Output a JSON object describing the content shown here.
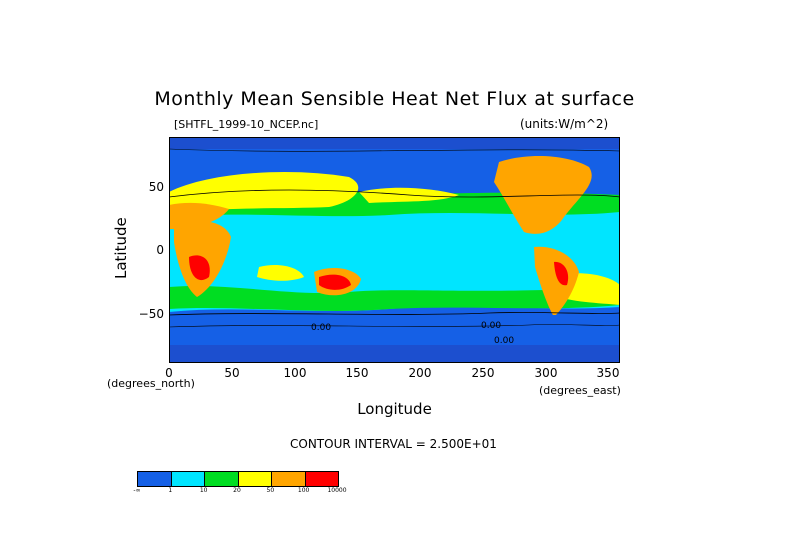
{
  "title": "Monthly Mean Sensible Heat Net Flux at surface",
  "file_label": "[SHTFL_1999-10_NCEP.nc]",
  "units_label": "(units:W/m^2)",
  "y_axis": {
    "label": "Latitude",
    "ticks": [
      "50",
      "0",
      "−50"
    ],
    "unit_note": "(degrees_north)"
  },
  "x_axis": {
    "label": "Longitude",
    "ticks": [
      "0",
      "50",
      "100",
      "150",
      "200",
      "250",
      "300",
      "350"
    ],
    "unit_note": "(degrees_east)"
  },
  "contour_interval": "CONTOUR INTERVAL = 2.500E+01",
  "contour_labels": [
    "0.00",
    "0.00",
    "0.00"
  ],
  "legend": {
    "colors": [
      "#1560e6",
      "#00e5ff",
      "#00dd22",
      "#ffff00",
      "#ffa500",
      "#ff0000"
    ],
    "labels": [
      "-∞",
      "1",
      "10",
      "20",
      "50",
      "100",
      "10000"
    ]
  },
  "chart_data": {
    "type": "heatmap",
    "title": "Monthly Mean Sensible Heat Net Flux at surface",
    "xlabel": "Longitude",
    "ylabel": "Latitude",
    "xlim": [
      0,
      360
    ],
    "ylim": [
      -90,
      90
    ],
    "x_ticks": [
      0,
      50,
      100,
      150,
      200,
      250,
      300,
      350
    ],
    "y_ticks": [
      -50,
      0,
      50
    ],
    "units": "W/m^2",
    "color_levels": [
      "-∞",
      "1",
      "10",
      "20",
      "50",
      "100",
      "10000"
    ]
  }
}
